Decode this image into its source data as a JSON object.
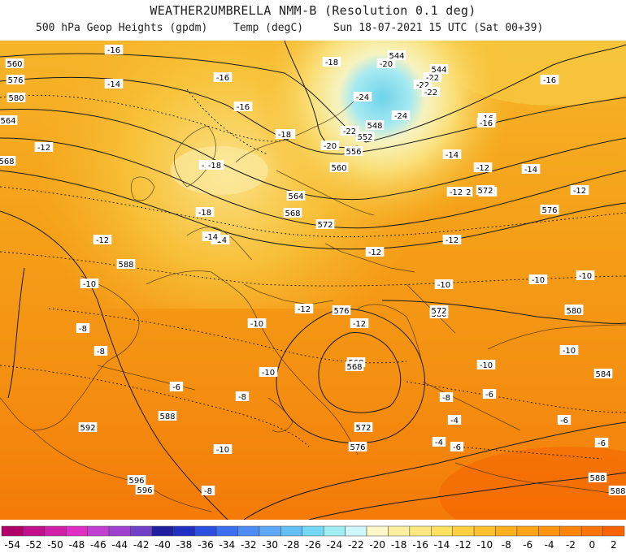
{
  "header": {
    "title": "WEATHER2UMBRELLA NMM-B (Resolution 0.1 deg)",
    "field": "500 hPa Geop Heights (gpdm)",
    "field2": "Temp (degC)",
    "valid": "Sun 18-07-2021 15 UTC (Sat 00+39)"
  },
  "map": {
    "height_labels": [
      "544",
      "544",
      "548",
      "552",
      "556",
      "560",
      "564",
      "568",
      "572",
      "576",
      "580",
      "588",
      "592",
      "596",
      "596",
      "588",
      "584",
      "580",
      "576",
      "572",
      "568",
      "576",
      "580",
      "572",
      "572",
      "576",
      "560",
      "564",
      "568",
      "572",
      "588",
      "568",
      "572",
      "576",
      "580",
      "588"
    ],
    "temp_labels": [
      "-16",
      "-18",
      "-20",
      "-22",
      "-22",
      "-22",
      "-24",
      "-24",
      "-22",
      "-20",
      "-18",
      "-18",
      "-16",
      "-16",
      "-16",
      "-16",
      "-14",
      "-14",
      "-14",
      "-12",
      "-12",
      "-12",
      "-12",
      "-12",
      "-10",
      "-10",
      "-10",
      "-10",
      "-10",
      "-10",
      "-8",
      "-8",
      "-8",
      "-8",
      "-6",
      "-6",
      "-6",
      "-6",
      "-4",
      "-4",
      "-6",
      "-8",
      "-10",
      "-12",
      "-12",
      "-14",
      "-16",
      "-18",
      "-18",
      "-18",
      "-14",
      "-12",
      "-10",
      "-10",
      "-12"
    ]
  },
  "colorbar": {
    "colors": [
      "#b0006a",
      "#c0108c",
      "#d020a8",
      "#e030c4",
      "#c040d0",
      "#a040d0",
      "#7040c8",
      "#2020a0",
      "#2030c0",
      "#2c50e0",
      "#3c70f0",
      "#4c8cf4",
      "#5ca8f4",
      "#64c0f4",
      "#74d8f4",
      "#a0eef4",
      "#d0f8fc",
      "#fcf8c8",
      "#fcf0a0",
      "#fce880",
      "#fce060",
      "#fcd040",
      "#fcc030",
      "#fcb020",
      "#fca418",
      "#fc9410",
      "#fc8408",
      "#fc7404",
      "#fc6400"
    ],
    "labels": [
      "-54",
      "-52",
      "-50",
      "-48",
      "-46",
      "-44",
      "-42",
      "-40",
      "-38",
      "-36",
      "-34",
      "-32",
      "-30",
      "-28",
      "-26",
      "-24",
      "-22",
      "-20",
      "-18",
      "-16",
      "-14",
      "-12",
      "-10",
      "-8",
      "-6",
      "-4",
      "-2",
      "0",
      "2"
    ]
  }
}
